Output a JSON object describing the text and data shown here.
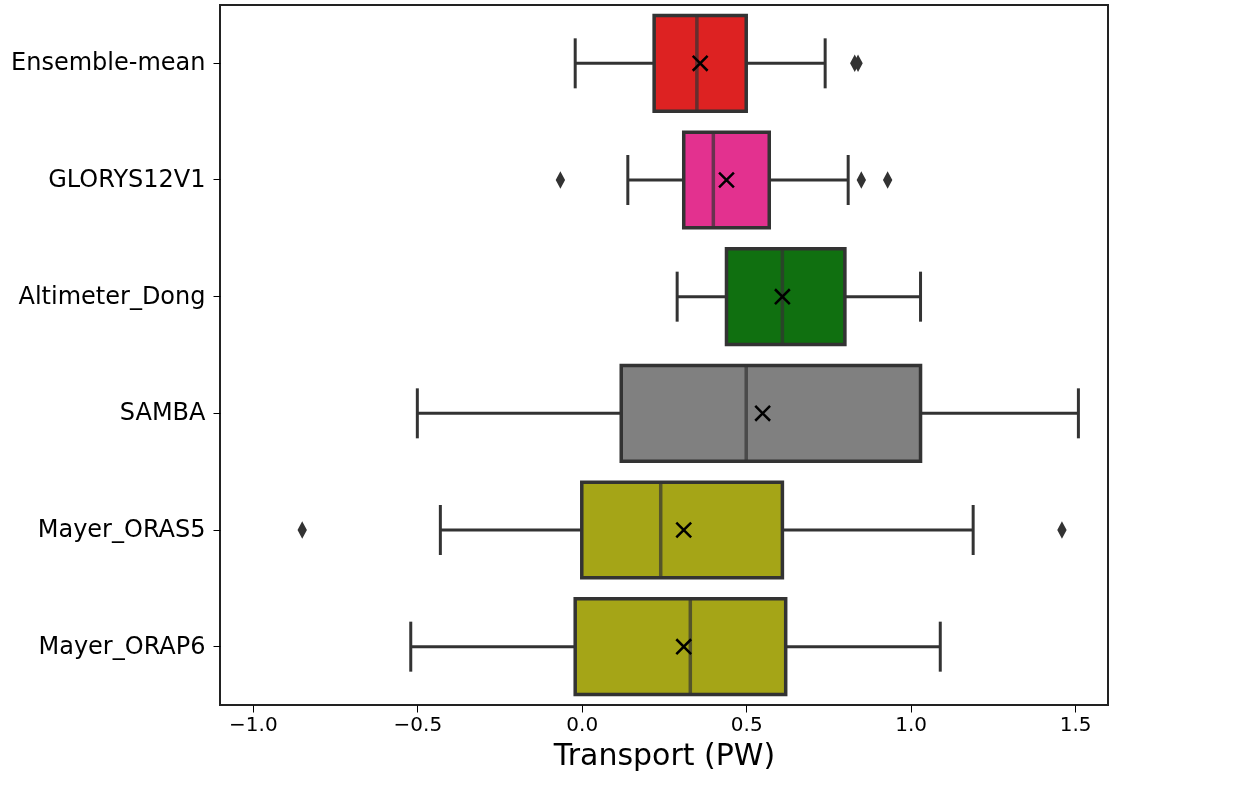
{
  "chart_data": {
    "type": "box",
    "orientation": "horizontal",
    "xlabel": "Transport (PW)",
    "categories": [
      "Ensemble-mean",
      "GLORYS12V1",
      "Altimeter_Dong",
      "SAMBA",
      "Mayer_ORAS5",
      "Mayer_ORAP6"
    ],
    "colors": [
      "#dd2222",
      "#e3318f",
      "#107010",
      "#808080",
      "#a5a517",
      "#a5a517"
    ],
    "boxes": [
      {
        "low": -0.02,
        "q1": 0.22,
        "median": 0.35,
        "q3": 0.5,
        "high": 0.74,
        "mean": 0.36,
        "outliers": [
          0.83,
          0.84
        ]
      },
      {
        "low": 0.14,
        "q1": 0.31,
        "median": 0.4,
        "q3": 0.57,
        "high": 0.81,
        "mean": 0.44,
        "outliers": [
          -0.065,
          0.85,
          0.93
        ]
      },
      {
        "low": 0.29,
        "q1": 0.44,
        "median": 0.61,
        "q3": 0.8,
        "high": 1.03,
        "mean": 0.61
      },
      {
        "low": -0.5,
        "q1": 0.12,
        "median": 0.5,
        "q3": 1.03,
        "high": 1.51,
        "mean": 0.55
      },
      {
        "low": -0.43,
        "q1": 0.0,
        "median": 0.24,
        "q3": 0.61,
        "high": 1.19,
        "mean": 0.31,
        "outliers": [
          -0.85,
          1.46
        ]
      },
      {
        "low": -0.52,
        "q1": -0.02,
        "median": 0.33,
        "q3": 0.62,
        "high": 1.09,
        "mean": 0.31
      }
    ],
    "xlim": [
      -1.1,
      1.6
    ],
    "xticks": [
      {
        "value": -1.0,
        "label": "−1.0"
      },
      {
        "value": -0.5,
        "label": "−0.5"
      },
      {
        "value": 0.0,
        "label": "0.0"
      },
      {
        "value": 0.5,
        "label": "0.5"
      },
      {
        "value": 1.0,
        "label": "1.0"
      },
      {
        "value": 1.5,
        "label": "1.5"
      }
    ],
    "grid": false,
    "legend": false
  }
}
